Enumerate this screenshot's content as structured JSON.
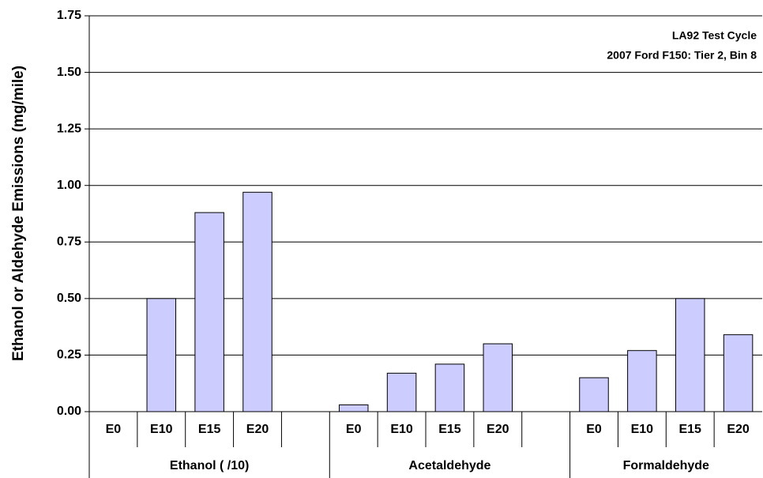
{
  "chart_data": {
    "type": "bar",
    "y_label": "Ethanol or Aldehyde Emissions (mg/mile)",
    "annotations": [
      "LA92 Test Cycle",
      "2007 Ford F150:  Tier 2, Bin 8"
    ],
    "color": "#ccccff",
    "grid": true,
    "ylim": [
      0,
      1.75
    ],
    "yticks": [
      {
        "value": 0,
        "label": "0.00"
      },
      {
        "value": 0.25,
        "label": "0.25"
      },
      {
        "value": 0.5,
        "label": "0.50"
      },
      {
        "value": 0.75,
        "label": "0.75"
      },
      {
        "value": 1,
        "label": "1.00"
      },
      {
        "value": 1.25,
        "label": "1.25"
      },
      {
        "value": 1.5,
        "label": "1.50"
      },
      {
        "value": 1.75,
        "label": "1.75"
      }
    ],
    "groups": [
      {
        "name": "Ethanol ( /10)",
        "categories": [
          "E0",
          "E10",
          "E15",
          "E20",
          null
        ],
        "values": [
          0,
          0.5,
          0.88,
          0.97,
          null
        ]
      },
      {
        "name": "Acetaldehyde",
        "categories": [
          "E0",
          "E10",
          "E15",
          "E20",
          null
        ],
        "values": [
          0.03,
          0.17,
          0.21,
          0.3,
          null
        ]
      },
      {
        "name": "Formaldehyde",
        "categories": [
          "E0",
          "E10",
          "E15",
          "E20"
        ],
        "values": [
          0.15,
          0.27,
          0.5,
          0.34
        ]
      }
    ]
  }
}
